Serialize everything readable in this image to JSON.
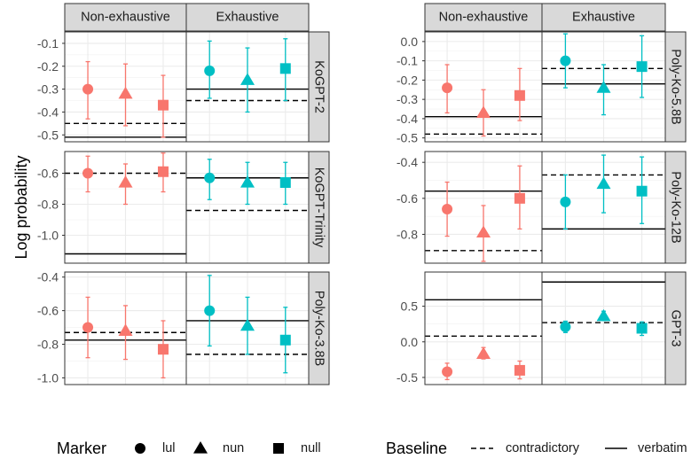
{
  "chart_data": {
    "type": "errorbar-faceted",
    "ylabel": "Log probability",
    "column_facets": [
      "Non-exhaustive",
      "Exhaustive"
    ],
    "markers": [
      "lul",
      "nun",
      "null"
    ],
    "legend": {
      "marker_title": "Marker",
      "marker_labels": [
        "lul",
        "nun",
        "null"
      ],
      "baseline_title": "Baseline",
      "baseline_labels": [
        "contradictory",
        "verbatim"
      ]
    },
    "colors": {
      "non_exhaustive": "#F8766D",
      "exhaustive": "#00BFC4"
    },
    "panels": [
      {
        "model": "KoGPT-2",
        "ylim": [
          -0.53,
          -0.05
        ],
        "yticks": [
          -0.1,
          -0.2,
          -0.3,
          -0.4,
          -0.5
        ],
        "ytick_labels": [
          "-0.1",
          "-0.2",
          "-0.3",
          "-0.4",
          "-0.5"
        ],
        "groups": [
          {
            "facet": "Non-exhaustive",
            "baseline": {
              "contradictory": -0.45,
              "verbatim": -0.51
            },
            "points": [
              {
                "marker": "lul",
                "mean": -0.3,
                "lo": -0.43,
                "hi": -0.18
              },
              {
                "marker": "nun",
                "mean": -0.32,
                "lo": -0.46,
                "hi": -0.19
              },
              {
                "marker": "null",
                "mean": -0.37,
                "lo": -0.51,
                "hi": -0.24
              }
            ]
          },
          {
            "facet": "Exhaustive",
            "baseline": {
              "contradictory": -0.35,
              "verbatim": -0.3
            },
            "points": [
              {
                "marker": "lul",
                "mean": -0.22,
                "lo": -0.34,
                "hi": -0.09
              },
              {
                "marker": "nun",
                "mean": -0.26,
                "lo": -0.4,
                "hi": -0.12
              },
              {
                "marker": "null",
                "mean": -0.21,
                "lo": -0.35,
                "hi": -0.08
              }
            ]
          }
        ]
      },
      {
        "model": "Poly-Ko-5.8B",
        "ylim": [
          -0.52,
          0.05
        ],
        "yticks": [
          0.0,
          -0.1,
          -0.2,
          -0.3,
          -0.4,
          -0.5
        ],
        "ytick_labels": [
          "0.0",
          "-0.1",
          "-0.2",
          "-0.3",
          "-0.4",
          "-0.5"
        ],
        "groups": [
          {
            "facet": "Non-exhaustive",
            "baseline": {
              "contradictory": -0.48,
              "verbatim": -0.39
            },
            "points": [
              {
                "marker": "lul",
                "mean": -0.24,
                "lo": -0.37,
                "hi": -0.12
              },
              {
                "marker": "nun",
                "mean": -0.37,
                "lo": -0.49,
                "hi": -0.25
              },
              {
                "marker": "null",
                "mean": -0.28,
                "lo": -0.41,
                "hi": -0.14
              }
            ]
          },
          {
            "facet": "Exhaustive",
            "baseline": {
              "contradictory": -0.14,
              "verbatim": -0.22
            },
            "points": [
              {
                "marker": "lul",
                "mean": -0.1,
                "lo": -0.24,
                "hi": 0.04
              },
              {
                "marker": "nun",
                "mean": -0.24,
                "lo": -0.38,
                "hi": -0.12
              },
              {
                "marker": "null",
                "mean": -0.13,
                "lo": -0.29,
                "hi": 0.03
              }
            ]
          }
        ]
      },
      {
        "model": "KoGPT-Trinity",
        "ylim": [
          -1.18,
          -0.46
        ],
        "yticks": [
          -0.6,
          -0.8,
          -1.0
        ],
        "ytick_labels": [
          "-0.6",
          "-0.8",
          "-1.0"
        ],
        "groups": [
          {
            "facet": "Non-exhaustive",
            "baseline": {
              "contradictory": -0.6,
              "verbatim": -1.12
            },
            "points": [
              {
                "marker": "lul",
                "mean": -0.6,
                "lo": -0.72,
                "hi": -0.49
              },
              {
                "marker": "nun",
                "mean": -0.66,
                "lo": -0.8,
                "hi": -0.54
              },
              {
                "marker": "null",
                "mean": -0.59,
                "lo": -0.72,
                "hi": -0.47
              }
            ]
          },
          {
            "facet": "Exhaustive",
            "baseline": {
              "contradictory": -0.84,
              "verbatim": -0.63
            },
            "points": [
              {
                "marker": "lul",
                "mean": -0.63,
                "lo": -0.77,
                "hi": -0.51
              },
              {
                "marker": "nun",
                "mean": -0.66,
                "lo": -0.8,
                "hi": -0.53
              },
              {
                "marker": "null",
                "mean": -0.66,
                "lo": -0.8,
                "hi": -0.53
              }
            ]
          }
        ]
      },
      {
        "model": "Poly-Ko-12B",
        "ylim": [
          -0.96,
          -0.34
        ],
        "yticks": [
          -0.4,
          -0.6,
          -0.8
        ],
        "ytick_labels": [
          "-0.4",
          "-0.6",
          "-0.8"
        ],
        "groups": [
          {
            "facet": "Non-exhaustive",
            "baseline": {
              "contradictory": -0.89,
              "verbatim": -0.56
            },
            "points": [
              {
                "marker": "lul",
                "mean": -0.66,
                "lo": -0.81,
                "hi": -0.51
              },
              {
                "marker": "nun",
                "mean": -0.79,
                "lo": -0.95,
                "hi": -0.64
              },
              {
                "marker": "null",
                "mean": -0.6,
                "lo": -0.77,
                "hi": -0.42
              }
            ]
          },
          {
            "facet": "Exhaustive",
            "baseline": {
              "contradictory": -0.47,
              "verbatim": -0.77
            },
            "points": [
              {
                "marker": "lul",
                "mean": -0.62,
                "lo": -0.77,
                "hi": -0.47
              },
              {
                "marker": "nun",
                "mean": -0.52,
                "lo": -0.68,
                "hi": -0.36
              },
              {
                "marker": "null",
                "mean": -0.56,
                "lo": -0.74,
                "hi": -0.37
              }
            ]
          }
        ]
      },
      {
        "model": "Poly-Ko-3.8B",
        "ylim": [
          -1.04,
          -0.37
        ],
        "yticks": [
          -0.4,
          -0.6,
          -0.8,
          -1.0
        ],
        "ytick_labels": [
          "-0.4",
          "-0.6",
          "-0.8",
          "-1.0"
        ],
        "groups": [
          {
            "facet": "Non-exhaustive",
            "baseline": {
              "contradictory": -0.73,
              "verbatim": -0.775
            },
            "points": [
              {
                "marker": "lul",
                "mean": -0.7,
                "lo": -0.88,
                "hi": -0.52
              },
              {
                "marker": "nun",
                "mean": -0.72,
                "lo": -0.89,
                "hi": -0.57
              },
              {
                "marker": "null",
                "mean": -0.83,
                "lo": -1.0,
                "hi": -0.66
              }
            ]
          },
          {
            "facet": "Exhaustive",
            "baseline": {
              "contradictory": -0.86,
              "verbatim": -0.66
            },
            "points": [
              {
                "marker": "lul",
                "mean": -0.6,
                "lo": -0.81,
                "hi": -0.39
              },
              {
                "marker": "nun",
                "mean": -0.69,
                "lo": -0.86,
                "hi": -0.52
              },
              {
                "marker": "null",
                "mean": -0.775,
                "lo": -0.97,
                "hi": -0.58
              }
            ]
          }
        ]
      },
      {
        "model": "GPT-3",
        "ylim": [
          -0.6,
          0.98
        ],
        "yticks": [
          0.5,
          0.0,
          -0.5
        ],
        "ytick_labels": [
          "0.5",
          "0.0",
          "-0.5"
        ],
        "groups": [
          {
            "facet": "Non-exhaustive",
            "baseline": {
              "contradictory": 0.08,
              "verbatim": 0.59
            },
            "points": [
              {
                "marker": "lul",
                "mean": -0.42,
                "lo": -0.53,
                "hi": -0.3
              },
              {
                "marker": "nun",
                "mean": -0.17,
                "lo": -0.24,
                "hi": -0.08
              },
              {
                "marker": "null",
                "mean": -0.4,
                "lo": -0.52,
                "hi": -0.27
              }
            ]
          },
          {
            "facet": "Exhaustive",
            "baseline": {
              "contradictory": 0.27,
              "verbatim": 0.84
            },
            "points": [
              {
                "marker": "lul",
                "mean": 0.21,
                "lo": 0.13,
                "hi": 0.29
              },
              {
                "marker": "nun",
                "mean": 0.36,
                "lo": 0.3,
                "hi": 0.43
              },
              {
                "marker": "null",
                "mean": 0.19,
                "lo": 0.09,
                "hi": 0.28
              }
            ]
          }
        ]
      }
    ]
  }
}
